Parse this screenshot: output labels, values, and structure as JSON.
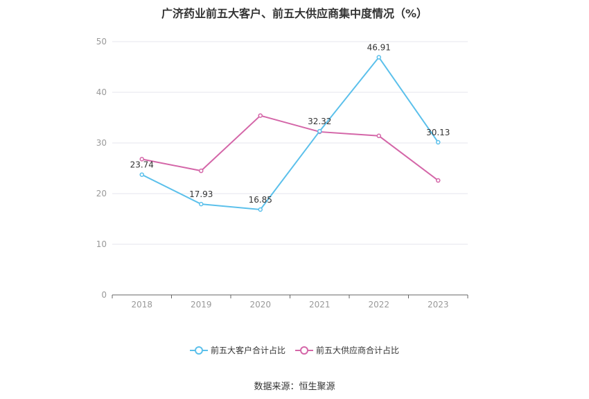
{
  "chart_data": {
    "type": "line",
    "title": "广济药业前五大客户、前五大供应商集中度情况（%）",
    "categories": [
      "2018",
      "2019",
      "2020",
      "2021",
      "2022",
      "2023"
    ],
    "yticks": [
      "0",
      "10",
      "20",
      "30",
      "40",
      "50"
    ],
    "ylim": [
      0,
      50
    ],
    "grid": true,
    "legend_position": "bottom",
    "series": [
      {
        "name": "前五大客户合计占比",
        "color": "#5bc0eb",
        "values": [
          23.74,
          17.93,
          16.85,
          32.32,
          46.91,
          30.13
        ],
        "labels": [
          "23.74",
          "17.93",
          "16.85",
          "32.32",
          "46.91",
          "30.13"
        ]
      },
      {
        "name": "前五大供应商合计占比",
        "color": "#d466a8",
        "values": [
          26.8,
          24.5,
          35.4,
          32.2,
          31.4,
          22.6
        ]
      }
    ]
  },
  "source": "数据来源：恒生聚源"
}
